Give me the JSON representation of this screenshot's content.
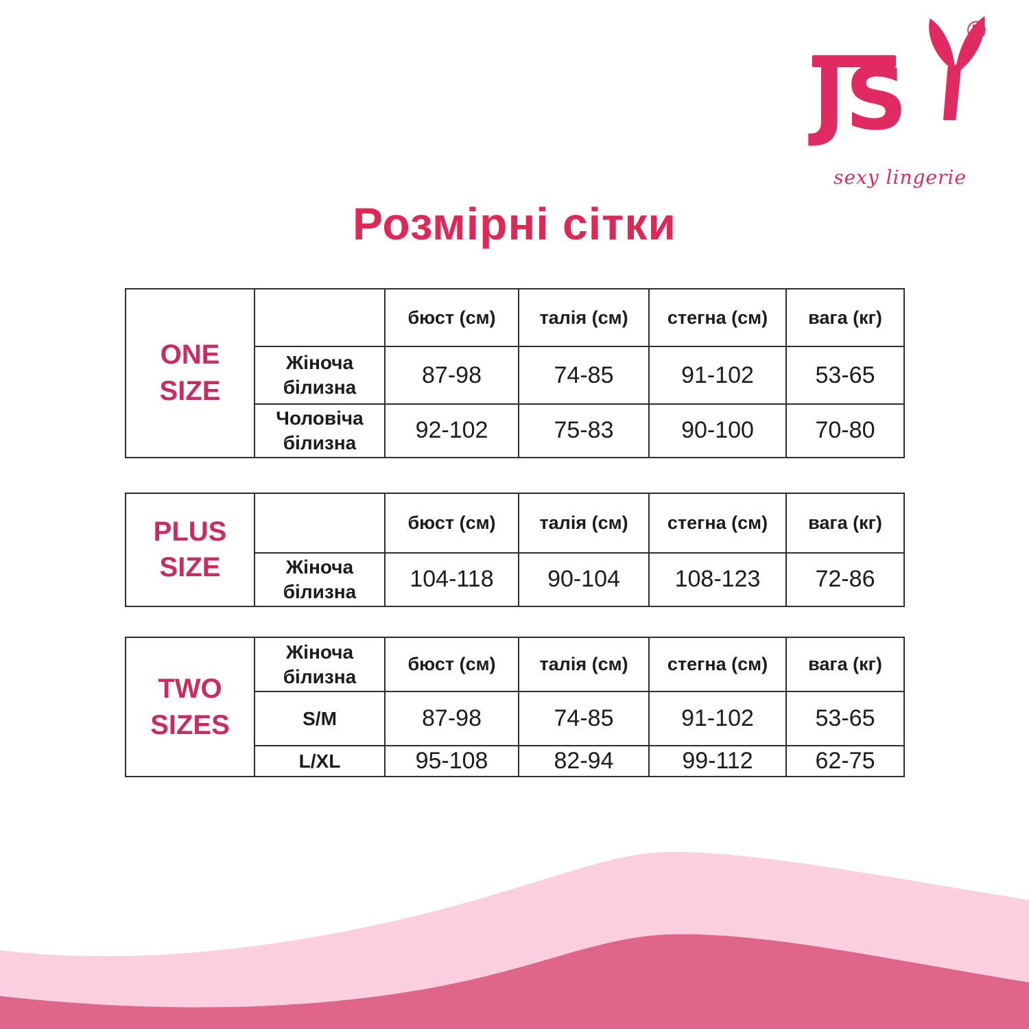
{
  "logo": {
    "brand": "JSY",
    "tagline": "sexy lingerie",
    "registered": "®"
  },
  "page_title": "Розмірні сітки",
  "colors": {
    "logo_pink": "#E12A61",
    "title_pink": "#E02857",
    "label_pink": "#CB2C60",
    "wave_light": "#FBCFE0",
    "wave_dark": "#E0658A",
    "text": "#1C1C1C",
    "border": "#2E2E2E"
  },
  "tables": [
    {
      "label": "ONE SIZE",
      "columns": [
        "",
        "бюст (см)",
        "талія (см)",
        "стегна (см)",
        "вага (кг)"
      ],
      "rows": [
        {
          "name": "Жіноча білизна",
          "values": [
            "87-98",
            "74-85",
            "91-102",
            "53-65"
          ]
        },
        {
          "name": "Чоловіча білизна",
          "values": [
            "92-102",
            "75-83",
            "90-100",
            "70-80"
          ]
        }
      ]
    },
    {
      "label": "PLUS SIZE",
      "columns": [
        "",
        "бюст (см)",
        "талія (см)",
        "стегна (см)",
        "вага (кг)"
      ],
      "rows": [
        {
          "name": "Жіноча білизна",
          "values": [
            "104-118",
            "90-104",
            "108-123",
            "72-86"
          ]
        }
      ]
    },
    {
      "label": "TWO SIZES",
      "columns": [
        "Жіноча білизна",
        "бюст (см)",
        "талія (см)",
        "стегна (см)",
        "вага (кг)"
      ],
      "rows": [
        {
          "name": "S/M",
          "values": [
            "87-98",
            "74-85",
            "91-102",
            "53-65"
          ]
        },
        {
          "name": "L/XL",
          "values": [
            "95-108",
            "82-94",
            "99-112",
            "62-75"
          ]
        }
      ]
    }
  ]
}
